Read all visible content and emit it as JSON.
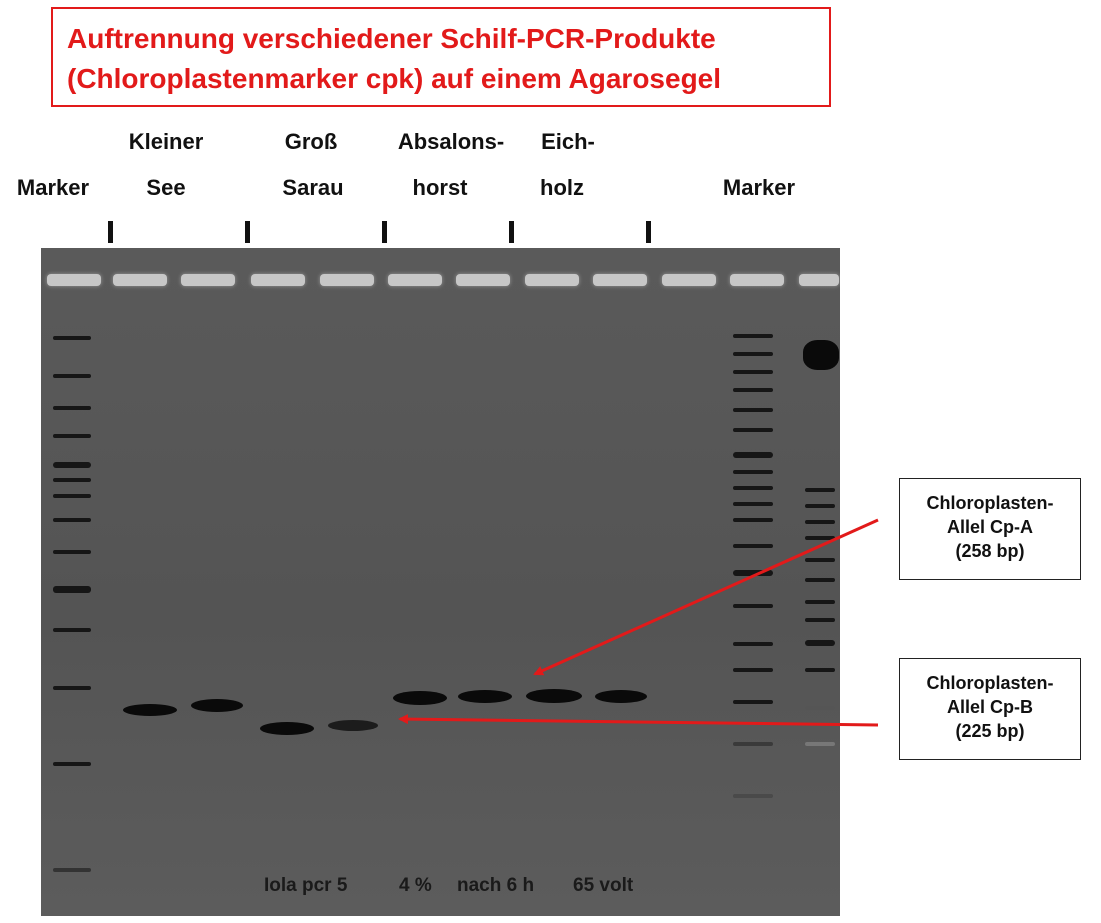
{
  "title": {
    "line1": "Auftrennung verschiedener Schilf-PCR-Produkte",
    "line2": "(Chloroplastenmarker cpk) auf einem Agarosegel"
  },
  "lane_groups": {
    "marker_left": "Marker",
    "kleiner_see": [
      "Kleiner",
      "See"
    ],
    "gross_sarau": [
      "Groß",
      "Sarau"
    ],
    "absalonshorst": [
      "Absalons-",
      "horst"
    ],
    "eichholz": [
      "Eich-",
      "holz"
    ],
    "marker_right": "Marker"
  },
  "gel_note": [
    "Iola pcr 5",
    "4 %",
    "nach 6 h",
    "65 volt"
  ],
  "callouts": {
    "cp_a": [
      "Chloroplasten-",
      "Allel Cp-A",
      "(258 bp)"
    ],
    "cp_b": [
      "Chloroplasten-",
      "Allel Cp-B",
      "(225 bp)"
    ]
  },
  "colors": {
    "title": "#e21a1a",
    "arrow": "#e21a1a",
    "gel": "#575757",
    "band": "#0a0a0a"
  }
}
